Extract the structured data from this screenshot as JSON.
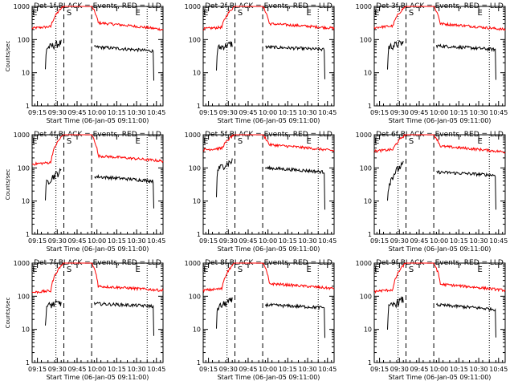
{
  "colors": {
    "background": "#ffffff",
    "events": "#000000",
    "lld": "#ff0000"
  },
  "chart_data": [
    {
      "type": "line",
      "title": "Det 1f BLACK = Events, RED = LLD",
      "xlabel": "Start Time (06-Jan-05 09:11:00)",
      "ylabel": "Counts/sec",
      "yscale": "log",
      "ylim": [
        1,
        1000
      ],
      "xlim_minutes_since_0911": [
        0,
        99
      ],
      "x_ticks": [
        "09:15",
        "09:30",
        "09:45",
        "10:00",
        "10:15",
        "10:30",
        "10:45"
      ],
      "y_ticks": [
        "1",
        "10",
        "100",
        "1000"
      ],
      "markers": [
        "E",
        "S",
        "E"
      ],
      "series": [
        {
          "name": "LLD",
          "color": "#ff0000",
          "levels": [
            220,
            1000,
            320,
            200
          ]
        },
        {
          "name": "Events",
          "color": "#000000",
          "levels": [
            55,
            80,
            60,
            45
          ]
        }
      ]
    },
    {
      "type": "line",
      "title": "Det 2f BLACK = Events, RED = LLD",
      "xlabel": "Start Time (06-Jan-05 09:11:00)",
      "ylabel": "",
      "yscale": "log",
      "ylim": [
        1,
        1000
      ],
      "xlim_minutes_since_0911": [
        0,
        99
      ],
      "x_ticks": [
        "09:15",
        "09:30",
        "09:45",
        "10:00",
        "10:15",
        "10:30",
        "10:45"
      ],
      "y_ticks": [
        "1",
        "10",
        "100",
        "1000"
      ],
      "markers": [
        "E",
        "S",
        "E"
      ],
      "series": [
        {
          "name": "LLD",
          "color": "#ff0000",
          "levels": [
            210,
            1000,
            300,
            220
          ]
        },
        {
          "name": "Events",
          "color": "#000000",
          "levels": [
            55,
            75,
            60,
            50
          ]
        }
      ]
    },
    {
      "type": "line",
      "title": "Det 3f BLACK = Events, RED = LLD",
      "xlabel": "Start Time (06-Jan-05 09:11:00)",
      "ylabel": "",
      "yscale": "log",
      "ylim": [
        1,
        1000
      ],
      "xlim_minutes_since_0911": [
        0,
        99
      ],
      "x_ticks": [
        "09:15",
        "09:30",
        "09:45",
        "10:00",
        "10:15",
        "10:30",
        "10:45"
      ],
      "y_ticks": [
        "1",
        "10",
        "100",
        "1000"
      ],
      "markers": [
        "E",
        "S",
        "E"
      ],
      "series": [
        {
          "name": "LLD",
          "color": "#ff0000",
          "levels": [
            230,
            1000,
            300,
            200
          ]
        },
        {
          "name": "Events",
          "color": "#000000",
          "levels": [
            60,
            80,
            65,
            50
          ]
        }
      ]
    },
    {
      "type": "line",
      "title": "Det 4f BLACK = Events, RED = LLD",
      "xlabel": "Start Time (06-Jan-05 09:11:00)",
      "ylabel": "Counts/sec",
      "yscale": "log",
      "ylim": [
        1,
        1000
      ],
      "xlim_minutes_since_0911": [
        0,
        99
      ],
      "x_ticks": [
        "09:15",
        "09:30",
        "09:45",
        "10:00",
        "10:15",
        "10:30",
        "10:45"
      ],
      "y_ticks": [
        "1",
        "10",
        "100",
        "1000"
      ],
      "markers": [
        "E",
        "S",
        "E"
      ],
      "series": [
        {
          "name": "LLD",
          "color": "#ff0000",
          "levels": [
            130,
            1000,
            230,
            160
          ]
        },
        {
          "name": "Events",
          "color": "#000000",
          "levels": [
            35,
            80,
            55,
            40
          ]
        }
      ]
    },
    {
      "type": "line",
      "title": "Det 5f BLACK = Events, RED = LLD",
      "xlabel": "Start Time (06-Jan-05 09:11:00)",
      "ylabel": "",
      "yscale": "log",
      "ylim": [
        1,
        1000
      ],
      "xlim_minutes_since_0911": [
        0,
        99
      ],
      "x_ticks": [
        "09:15",
        "09:30",
        "09:45",
        "10:00",
        "10:15",
        "10:30",
        "10:45"
      ],
      "y_ticks": [
        "1",
        "10",
        "100",
        "1000"
      ],
      "markers": [
        "E",
        "S",
        "E"
      ],
      "series": [
        {
          "name": "LLD",
          "color": "#ff0000",
          "levels": [
            350,
            1000,
            500,
            330
          ]
        },
        {
          "name": "Events",
          "color": "#000000",
          "levels": [
            90,
            160,
            100,
            75
          ]
        }
      ]
    },
    {
      "type": "line",
      "title": "Det 6f BLACK = Events, RED = LLD",
      "xlabel": "Start Time (06-Jan-05 09:11:00)",
      "ylabel": "",
      "yscale": "log",
      "ylim": [
        1,
        1000
      ],
      "xlim_minutes_since_0911": [
        0,
        99
      ],
      "x_ticks": [
        "09:15",
        "09:30",
        "09:45",
        "10:00",
        "10:15",
        "10:30",
        "10:45"
      ],
      "y_ticks": [
        "1",
        "10",
        "100",
        "1000"
      ],
      "markers": [
        "E",
        "S",
        "E"
      ],
      "series": [
        {
          "name": "LLD",
          "color": "#ff0000",
          "levels": [
            320,
            1000,
            450,
            300
          ]
        },
        {
          "name": "Events",
          "color": "#000000",
          "levels": [
            30,
            130,
            75,
            60
          ]
        }
      ]
    },
    {
      "type": "line",
      "title": "Det 7f BLACK = Events, RED = LLD",
      "xlabel": "Start Time (06-Jan-05 09:11:00)",
      "ylabel": "Counts/sec",
      "yscale": "log",
      "ylim": [
        1,
        1000
      ],
      "xlim_minutes_since_0911": [
        0,
        99
      ],
      "x_ticks": [
        "09:15",
        "09:30",
        "09:45",
        "10:00",
        "10:15",
        "10:30",
        "10:45"
      ],
      "y_ticks": [
        "1",
        "10",
        "100",
        "1000"
      ],
      "markers": [
        "E",
        "S",
        "E"
      ],
      "series": [
        {
          "name": "LLD",
          "color": "#ff0000",
          "levels": [
            130,
            1000,
            200,
            150
          ]
        },
        {
          "name": "Events",
          "color": "#000000",
          "levels": [
            50,
            65,
            60,
            50
          ]
        }
      ]
    },
    {
      "type": "line",
      "title": "Det 8f BLACK = Events, RED = LLD",
      "xlabel": "Start Time (06-Jan-05 09:11:00)",
      "ylabel": "",
      "yscale": "log",
      "ylim": [
        1,
        1000
      ],
      "xlim_minutes_since_0911": [
        0,
        99
      ],
      "x_ticks": [
        "09:15",
        "09:30",
        "09:45",
        "10:00",
        "10:15",
        "10:30",
        "10:45"
      ],
      "y_ticks": [
        "1",
        "10",
        "100",
        "1000"
      ],
      "markers": [
        "E",
        "S",
        "E"
      ],
      "series": [
        {
          "name": "LLD",
          "color": "#ff0000",
          "levels": [
            150,
            1000,
            240,
            170
          ]
        },
        {
          "name": "Events",
          "color": "#000000",
          "levels": [
            45,
            75,
            55,
            45
          ]
        }
      ]
    },
    {
      "type": "line",
      "title": "Det 9f BLACK = Events, RED = LLD",
      "xlabel": "Start Time (06-Jan-05 09:11:00)",
      "ylabel": "",
      "yscale": "log",
      "ylim": [
        1,
        1000
      ],
      "xlim_minutes_since_0911": [
        0,
        99
      ],
      "x_ticks": [
        "09:15",
        "09:30",
        "09:45",
        "10:00",
        "10:15",
        "10:30",
        "10:45"
      ],
      "y_ticks": [
        "1",
        "10",
        "100",
        "1000"
      ],
      "markers": [
        "E",
        "S",
        "E"
      ],
      "series": [
        {
          "name": "LLD",
          "color": "#ff0000",
          "levels": [
            140,
            1000,
            230,
            150
          ]
        },
        {
          "name": "Events",
          "color": "#000000",
          "levels": [
            45,
            80,
            55,
            40
          ]
        }
      ]
    }
  ]
}
